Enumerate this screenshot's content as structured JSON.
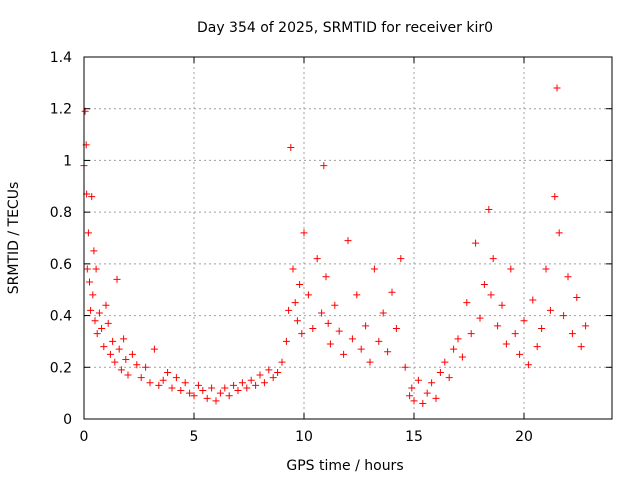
{
  "chart_data": {
    "type": "scatter",
    "title": "Day 354 of 2025, SRMTID for receiver kir0",
    "xlabel": "GPS time / hours",
    "ylabel": "SRMTID / TECUs",
    "xlim": [
      0,
      24
    ],
    "ylim": [
      0,
      1.4
    ],
    "xticks": [
      0,
      5,
      10,
      15,
      20
    ],
    "xtick_labels": [
      "0",
      "5",
      "10",
      "15",
      "20"
    ],
    "yticks": [
      0,
      0.2,
      0.4,
      0.6,
      0.8,
      1.0,
      1.2,
      1.4
    ],
    "ytick_labels": [
      "0",
      "0.2",
      "0.4",
      "0.6",
      "0.8",
      "1",
      "1.2",
      "1.4"
    ],
    "grid": true,
    "marker": "+",
    "series": [
      {
        "name": "kir0",
        "color": "#ff0000",
        "x": [
          0.0,
          0.05,
          0.1,
          0.12,
          0.15,
          0.2,
          0.25,
          0.3,
          0.35,
          0.4,
          0.45,
          0.5,
          0.55,
          0.6,
          0.7,
          0.8,
          0.9,
          1.0,
          1.1,
          1.2,
          1.3,
          1.4,
          1.5,
          1.6,
          1.7,
          1.8,
          1.9,
          2.0,
          2.2,
          2.4,
          2.6,
          2.8,
          3.0,
          3.2,
          3.4,
          3.6,
          3.8,
          4.0,
          4.2,
          4.4,
          4.6,
          4.8,
          5.0,
          5.2,
          5.4,
          5.6,
          5.8,
          6.0,
          6.2,
          6.4,
          6.6,
          6.8,
          7.0,
          7.2,
          7.4,
          7.6,
          7.8,
          8.0,
          8.2,
          8.4,
          8.6,
          8.8,
          9.0,
          9.2,
          9.3,
          9.4,
          9.5,
          9.6,
          9.7,
          9.8,
          9.9,
          10.0,
          10.2,
          10.4,
          10.6,
          10.8,
          10.9,
          11.0,
          11.1,
          11.2,
          11.4,
          11.6,
          11.8,
          12.0,
          12.2,
          12.4,
          12.6,
          12.8,
          13.0,
          13.2,
          13.4,
          13.6,
          13.8,
          14.0,
          14.2,
          14.4,
          14.6,
          14.8,
          14.9,
          15.0,
          15.2,
          15.4,
          15.6,
          15.8,
          16.0,
          16.2,
          16.4,
          16.6,
          16.8,
          17.0,
          17.2,
          17.4,
          17.6,
          17.8,
          18.0,
          18.2,
          18.4,
          18.5,
          18.6,
          18.8,
          19.0,
          19.2,
          19.4,
          19.6,
          19.8,
          20.0,
          20.2,
          20.4,
          20.6,
          20.8,
          21.0,
          21.2,
          21.4,
          21.5,
          21.6,
          21.8,
          22.0,
          22.2,
          22.4,
          22.6,
          22.8
        ],
        "y": [
          0.98,
          1.19,
          1.06,
          0.87,
          0.58,
          0.72,
          0.53,
          0.42,
          0.86,
          0.48,
          0.65,
          0.38,
          0.58,
          0.33,
          0.41,
          0.35,
          0.28,
          0.44,
          0.37,
          0.25,
          0.3,
          0.22,
          0.54,
          0.27,
          0.19,
          0.31,
          0.23,
          0.17,
          0.25,
          0.21,
          0.16,
          0.2,
          0.14,
          0.27,
          0.13,
          0.15,
          0.18,
          0.12,
          0.16,
          0.11,
          0.14,
          0.1,
          0.09,
          0.13,
          0.11,
          0.08,
          0.12,
          0.07,
          0.1,
          0.12,
          0.09,
          0.13,
          0.11,
          0.14,
          0.12,
          0.15,
          0.13,
          0.17,
          0.14,
          0.19,
          0.16,
          0.18,
          0.22,
          0.3,
          0.42,
          1.05,
          0.58,
          0.45,
          0.38,
          0.52,
          0.33,
          0.72,
          0.48,
          0.35,
          0.62,
          0.41,
          0.98,
          0.55,
          0.37,
          0.29,
          0.44,
          0.34,
          0.25,
          0.69,
          0.31,
          0.48,
          0.27,
          0.36,
          0.22,
          0.58,
          0.3,
          0.41,
          0.26,
          0.49,
          0.35,
          0.62,
          0.2,
          0.09,
          0.12,
          0.07,
          0.15,
          0.06,
          0.1,
          0.14,
          0.08,
          0.18,
          0.22,
          0.16,
          0.27,
          0.31,
          0.24,
          0.45,
          0.33,
          0.68,
          0.39,
          0.52,
          0.81,
          0.48,
          0.62,
          0.36,
          0.44,
          0.29,
          0.58,
          0.33,
          0.25,
          0.38,
          0.21,
          0.46,
          0.28,
          0.35,
          0.58,
          0.42,
          0.86,
          1.28,
          0.72,
          0.4,
          0.55,
          0.33,
          0.47,
          0.28,
          0.36
        ]
      }
    ]
  }
}
